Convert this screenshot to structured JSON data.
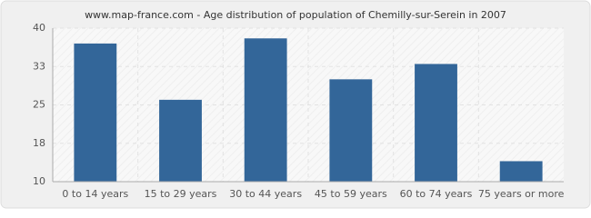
{
  "chart_data": {
    "type": "bar",
    "title": "www.map-france.com - Age distribution of population of Chemilly-sur-Serein in 2007",
    "categories": [
      "0 to 14 years",
      "15 to 29 years",
      "30 to 44 years",
      "45 to 59 years",
      "60 to 74 years",
      "75 years or more"
    ],
    "values": [
      37,
      26,
      38,
      30,
      33,
      14
    ],
    "color": "#336699",
    "ylim": [
      10,
      40
    ],
    "yticks": [
      10,
      {
        "value": 17.5,
        "label": "18"
      },
      25,
      {
        "value": 32.5,
        "label": "33"
      },
      40
    ],
    "grid": true
  }
}
